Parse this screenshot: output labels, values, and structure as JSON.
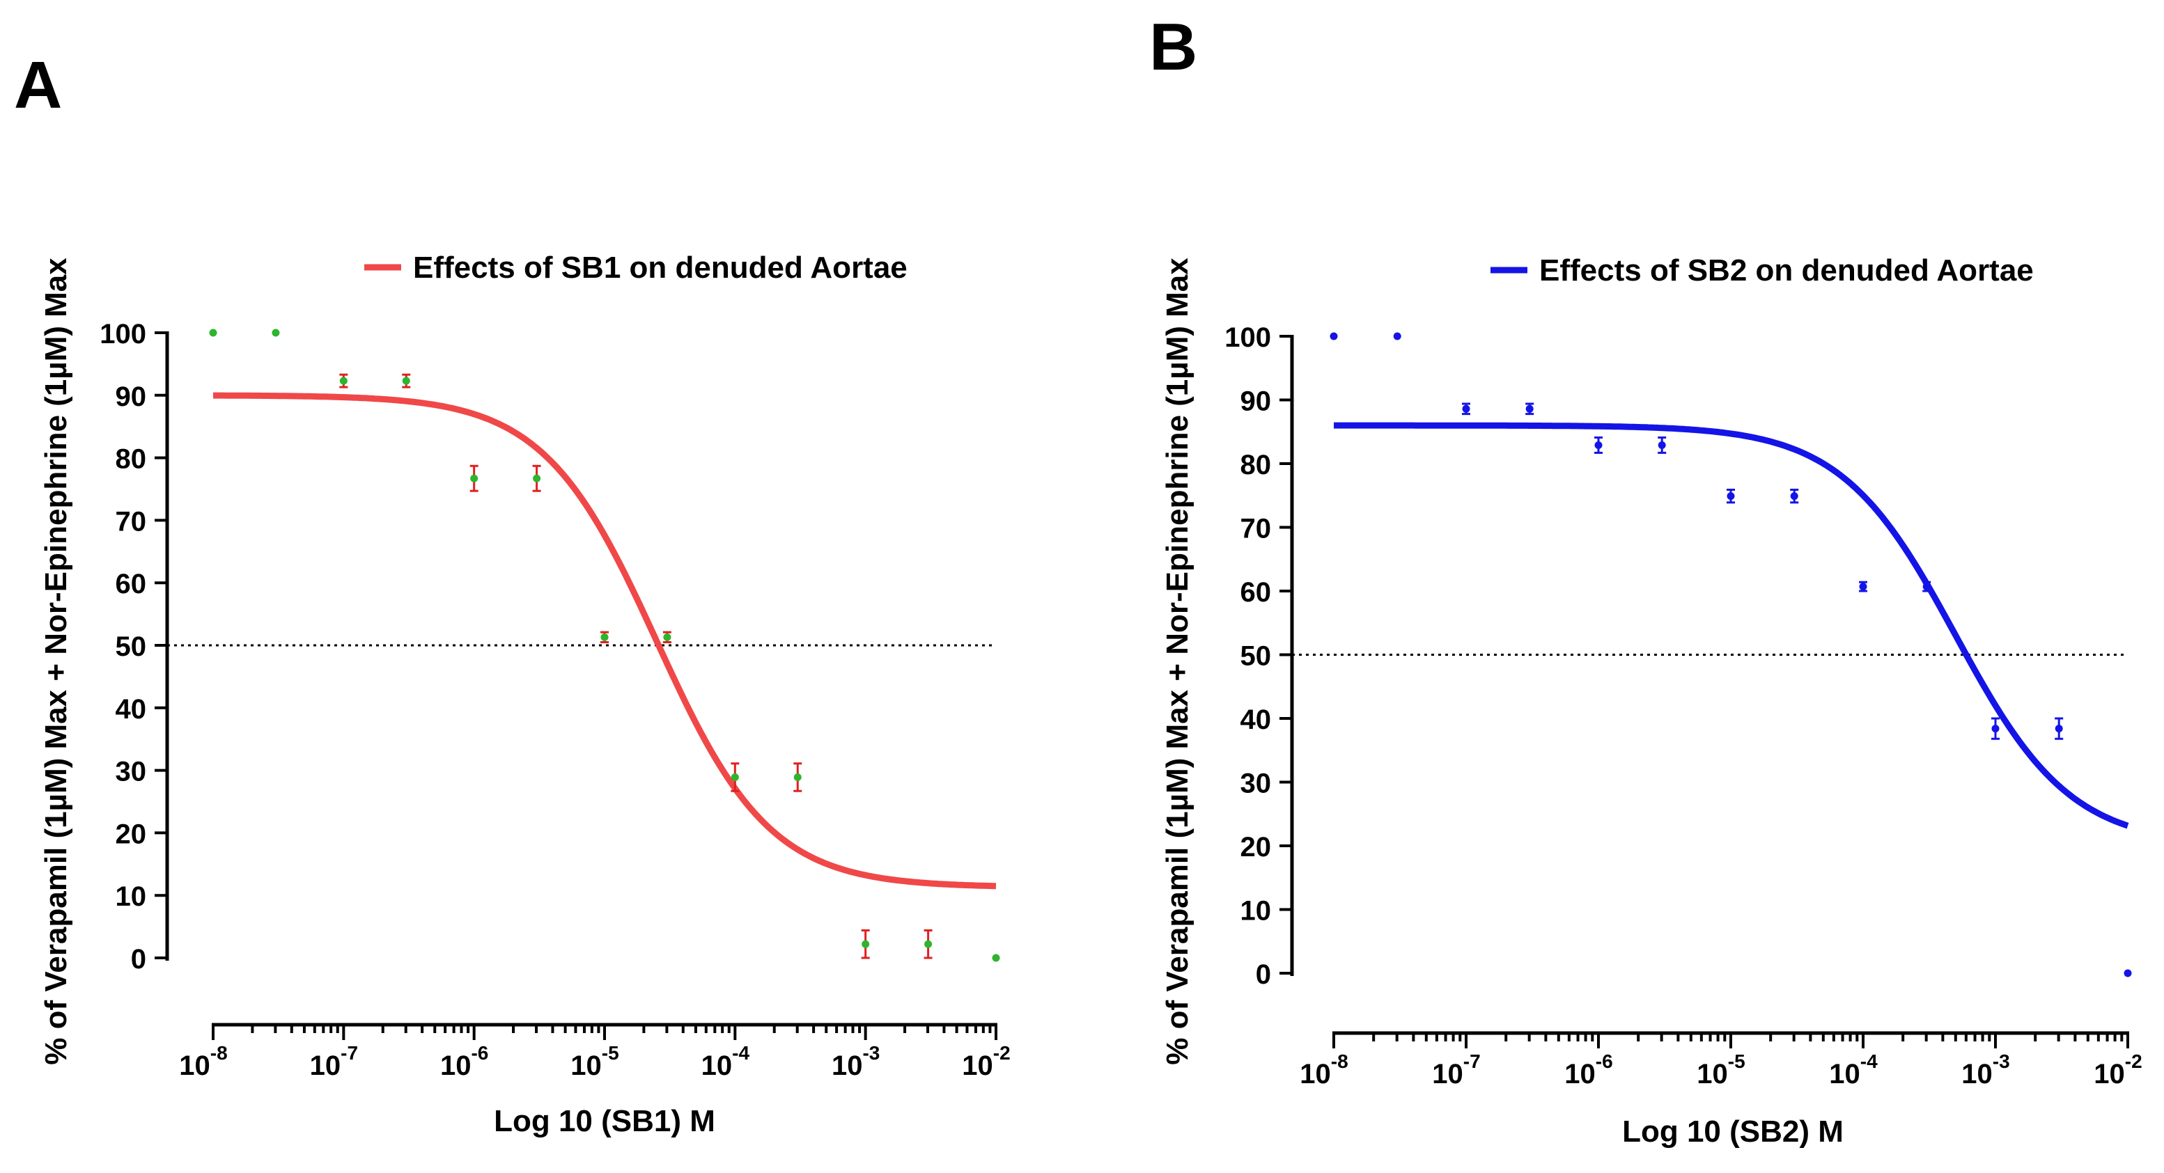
{
  "chart_data": [
    {
      "panel_label": "A",
      "type": "scatter",
      "title": "Effects of SB1 on denuded Aortae",
      "xlabel": "Log 10 (SB1) M",
      "ylabel": "% of Verapamil (1µM) Max + Nor-Epinephrine (1µM) Max",
      "x_scale": "log",
      "xlim": [
        -8,
        -2
      ],
      "ylim": [
        0,
        100
      ],
      "x_ticks": [
        {
          "base": "10",
          "exp": "-8"
        },
        {
          "base": "10",
          "exp": "-7"
        },
        {
          "base": "10",
          "exp": "-6"
        },
        {
          "base": "10",
          "exp": "-5"
        },
        {
          "base": "10",
          "exp": "-4"
        },
        {
          "base": "10",
          "exp": "-3"
        },
        {
          "base": "10",
          "exp": "-2"
        }
      ],
      "y_ticks": [
        "0",
        "10",
        "20",
        "30",
        "40",
        "50",
        "60",
        "70",
        "80",
        "90",
        "100"
      ],
      "legend_location": "top",
      "reference_line": {
        "y": 50,
        "style": "dotted"
      },
      "curve_color": "#f04848",
      "point_color": "#2db52d",
      "errorbar_color": "#e02020",
      "fit": {
        "top": 90,
        "bottom": 11.3,
        "log_ic50": -4.6,
        "hill": 1.0
      },
      "points": [
        {
          "x": -8.0,
          "y": 100,
          "err": 0
        },
        {
          "x": -7.52,
          "y": 100,
          "err": 0
        },
        {
          "x": -7.0,
          "y": 92.3,
          "err": 1.0
        },
        {
          "x": -6.52,
          "y": 92.3,
          "err": 1.0
        },
        {
          "x": -6.0,
          "y": 76.7,
          "err": 2.0
        },
        {
          "x": -5.52,
          "y": 76.7,
          "err": 2.0
        },
        {
          "x": -5.0,
          "y": 51.3,
          "err": 0.8
        },
        {
          "x": -4.52,
          "y": 51.3,
          "err": 0.8
        },
        {
          "x": -4.0,
          "y": 28.9,
          "err": 2.2
        },
        {
          "x": -3.52,
          "y": 28.9,
          "err": 2.2
        },
        {
          "x": -3.0,
          "y": 2.2,
          "err": 2.2
        },
        {
          "x": -2.52,
          "y": 2.2,
          "err": 2.2
        },
        {
          "x": -2.0,
          "y": 0,
          "err": 0
        }
      ]
    },
    {
      "panel_label": "B",
      "type": "scatter",
      "title": "Effects of SB2 on denuded Aortae",
      "xlabel": "Log 10 (SB2) M",
      "ylabel": "% of Verapamil (1µM) Max + Nor-Epinephrine (1µM) Max",
      "x_scale": "log",
      "xlim": [
        -8,
        -2
      ],
      "ylim": [
        0,
        100
      ],
      "x_ticks": [
        {
          "base": "10",
          "exp": "-8"
        },
        {
          "base": "10",
          "exp": "-7"
        },
        {
          "base": "10",
          "exp": "-6"
        },
        {
          "base": "10",
          "exp": "-5"
        },
        {
          "base": "10",
          "exp": "-4"
        },
        {
          "base": "10",
          "exp": "-3"
        },
        {
          "base": "10",
          "exp": "-2"
        }
      ],
      "y_ticks": [
        "0",
        "10",
        "20",
        "30",
        "40",
        "50",
        "60",
        "70",
        "80",
        "90",
        "100"
      ],
      "legend_location": "top",
      "reference_line": {
        "y": 50,
        "style": "dotted"
      },
      "curve_color": "#1414e6",
      "point_color": "#1414e6",
      "errorbar_color": "#1414e6",
      "fit": {
        "top": 86,
        "bottom": 20,
        "log_ic50": -3.3,
        "hill": 1.0
      },
      "points": [
        {
          "x": -8.0,
          "y": 100,
          "err": 0
        },
        {
          "x": -7.52,
          "y": 100,
          "err": 0
        },
        {
          "x": -7.0,
          "y": 88.6,
          "err": 0.8
        },
        {
          "x": -6.52,
          "y": 88.6,
          "err": 0.8
        },
        {
          "x": -6.0,
          "y": 82.9,
          "err": 1.2
        },
        {
          "x": -5.52,
          "y": 82.9,
          "err": 1.2
        },
        {
          "x": -5.0,
          "y": 74.9,
          "err": 1.0
        },
        {
          "x": -4.52,
          "y": 74.9,
          "err": 1.0
        },
        {
          "x": -4.0,
          "y": 60.7,
          "err": 0.7
        },
        {
          "x": -3.52,
          "y": 60.7,
          "err": 0.7
        },
        {
          "x": -3.0,
          "y": 38.4,
          "err": 1.6
        },
        {
          "x": -2.52,
          "y": 38.4,
          "err": 1.6
        },
        {
          "x": -2.0,
          "y": 0,
          "err": 0
        }
      ]
    }
  ]
}
